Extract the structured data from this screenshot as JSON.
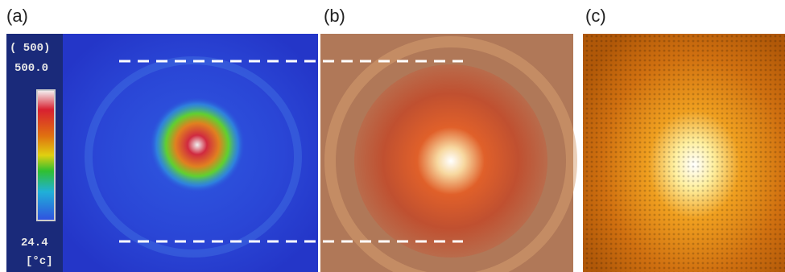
{
  "panels": [
    {
      "label": "(a)"
    },
    {
      "label": "(b)"
    },
    {
      "label": "(c)"
    }
  ],
  "colorbar": {
    "range_label": "( 500)",
    "max_label": "500.0",
    "min_label": "24.4",
    "unit_label": "[°c]"
  }
}
